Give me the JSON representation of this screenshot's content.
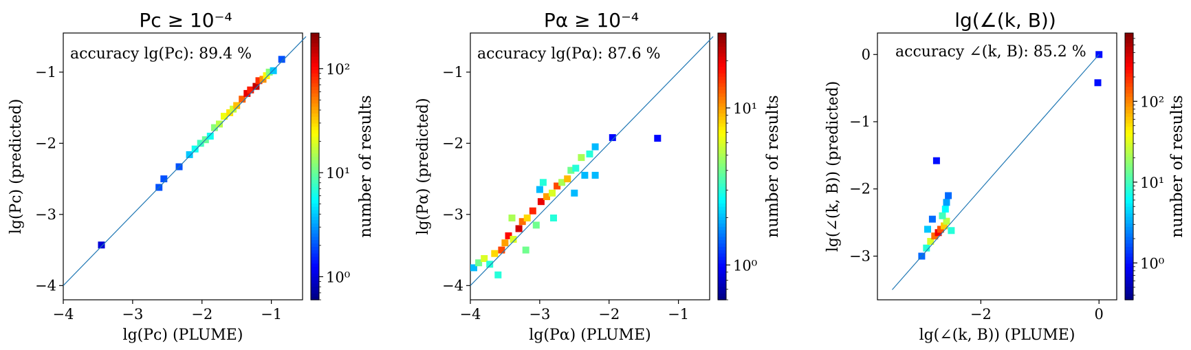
{
  "figure": {
    "colorbar_label": "number of results"
  },
  "colormap": [
    "#00007f",
    "#0000ff",
    "#007fff",
    "#00ffff",
    "#7fff7f",
    "#ffff00",
    "#ff7f00",
    "#ff0000",
    "#7f0000"
  ],
  "chart_data": [
    {
      "type": "heatmap",
      "title": "Pᴄ ≥ 10⁻⁴",
      "xlabel": "lg(Pᴄ) (PLUME)",
      "ylabel": "lg(Pᴄ) (predicted)",
      "accuracy_text": "accuracy lg(Pᴄ): 89.4 %",
      "xlim": [
        -4.0,
        -0.55
      ],
      "ylim": [
        -4.2,
        -0.45
      ],
      "xticks": [
        -4,
        -3,
        -2,
        -1
      ],
      "xtick_labels": [
        "−4",
        "−3",
        "−2",
        "−1"
      ],
      "yticks": [
        -4,
        -3,
        -2,
        -1
      ],
      "ytick_labels": [
        "−4",
        "−3",
        "−2",
        "−1"
      ],
      "diagonal": [
        -4.0,
        -0.5
      ],
      "colorbar": {
        "scale": "log",
        "range": [
          0.6,
          220
        ],
        "ticks": [
          1,
          10,
          100
        ],
        "tick_labels": [
          "10⁰",
          "10¹",
          "10²"
        ]
      },
      "points": [
        [
          -3.45,
          -3.43,
          1
        ],
        [
          -2.62,
          -2.62,
          2
        ],
        [
          -2.55,
          -2.5,
          2
        ],
        [
          -2.33,
          -2.33,
          2
        ],
        [
          -2.18,
          -2.16,
          4
        ],
        [
          -2.1,
          -2.08,
          6
        ],
        [
          -2.02,
          -2.0,
          8
        ],
        [
          -1.95,
          -1.95,
          10
        ],
        [
          -1.88,
          -1.9,
          6
        ],
        [
          -1.82,
          -1.78,
          12
        ],
        [
          -1.75,
          -1.73,
          16
        ],
        [
          -1.68,
          -1.62,
          22
        ],
        [
          -1.6,
          -1.57,
          28
        ],
        [
          -1.55,
          -1.52,
          18
        ],
        [
          -1.5,
          -1.47,
          35
        ],
        [
          -1.42,
          -1.38,
          60
        ],
        [
          -1.35,
          -1.3,
          120
        ],
        [
          -1.3,
          -1.25,
          90
        ],
        [
          -1.22,
          -1.2,
          150
        ],
        [
          -1.18,
          -1.12,
          80
        ],
        [
          -1.12,
          -1.1,
          45
        ],
        [
          -1.07,
          -1.05,
          25
        ],
        [
          -1.03,
          -1.0,
          12
        ],
        [
          -0.97,
          -0.98,
          4
        ],
        [
          -0.85,
          -0.82,
          2
        ]
      ]
    },
    {
      "type": "heatmap",
      "title": "Pα ≥ 10⁻⁴",
      "xlabel": "lg(Pα) (PLUME)",
      "ylabel": "lg(Pα) (predicted)",
      "accuracy_text": "accuracy lg(Pα): 87.6 %",
      "xlim": [
        -4.0,
        -0.55
      ],
      "ylim": [
        -4.2,
        -0.45
      ],
      "xticks": [
        -4,
        -3,
        -2,
        -1
      ],
      "xtick_labels": [
        "−4",
        "−3",
        "−2",
        "−1"
      ],
      "yticks": [
        -4,
        -3,
        -2,
        -1
      ],
      "ytick_labels": [
        "−4",
        "−3",
        "−2",
        "−1"
      ],
      "diagonal": [
        -4.0,
        -0.5
      ],
      "colorbar": {
        "scale": "log",
        "range": [
          0.6,
          30
        ],
        "ticks": [
          1,
          10
        ],
        "tick_labels": [
          "10⁰",
          "10¹"
        ]
      },
      "points": [
        [
          -3.95,
          -3.75,
          2
        ],
        [
          -3.88,
          -3.68,
          4
        ],
        [
          -3.8,
          -3.62,
          6
        ],
        [
          -3.72,
          -3.7,
          3
        ],
        [
          -3.65,
          -3.55,
          8
        ],
        [
          -3.55,
          -3.5,
          14
        ],
        [
          -3.5,
          -3.4,
          10
        ],
        [
          -3.45,
          -3.3,
          18
        ],
        [
          -3.38,
          -3.35,
          6
        ],
        [
          -3.3,
          -3.2,
          22
        ],
        [
          -3.25,
          -3.1,
          12
        ],
        [
          -3.18,
          -3.05,
          8
        ],
        [
          -3.1,
          -2.95,
          16
        ],
        [
          -3.05,
          -3.15,
          4
        ],
        [
          -2.98,
          -2.82,
          20
        ],
        [
          -2.9,
          -2.75,
          10
        ],
        [
          -2.82,
          -2.7,
          6
        ],
        [
          -2.75,
          -2.6,
          14
        ],
        [
          -2.68,
          -2.55,
          5
        ],
        [
          -2.6,
          -2.5,
          9
        ],
        [
          -2.55,
          -2.38,
          4
        ],
        [
          -2.48,
          -2.35,
          3
        ],
        [
          -2.4,
          -2.2,
          5
        ],
        [
          -2.35,
          -2.45,
          2
        ],
        [
          -2.28,
          -2.15,
          3
        ],
        [
          -2.2,
          -2.05,
          2
        ],
        [
          -1.95,
          -1.92,
          1
        ],
        [
          -1.3,
          -1.93,
          1
        ],
        [
          -3.6,
          -3.85,
          3
        ],
        [
          -3.2,
          -3.5,
          4
        ],
        [
          -2.8,
          -3.05,
          3
        ],
        [
          -3.4,
          -3.05,
          5
        ],
        [
          -2.95,
          -2.55,
          3
        ],
        [
          -2.5,
          -2.7,
          2
        ],
        [
          -3.0,
          -2.65,
          2
        ],
        [
          -2.2,
          -2.45,
          2
        ]
      ]
    },
    {
      "type": "heatmap",
      "title": "lg(∠(k, B))",
      "xlabel": "lg(∠(k, B)) (PLUME)",
      "ylabel": "lg(∠(k, B)) (predicted)",
      "accuracy_text": "accuracy ∠(k, B): 85.2 %",
      "xlim": [
        -3.75,
        0.3
      ],
      "ylim": [
        -3.65,
        0.32
      ],
      "xticks": [
        -2,
        0
      ],
      "xtick_labels": [
        "−2",
        "0"
      ],
      "yticks": [
        -3,
        -2,
        -1,
        0
      ],
      "ytick_labels": [
        "−3",
        "−2",
        "−1",
        "0"
      ],
      "diagonal": [
        -3.5,
        0.0
      ],
      "colorbar": {
        "scale": "log",
        "range": [
          0.35,
          700
        ],
        "ticks": [
          1,
          10,
          100
        ],
        "tick_labels": [
          "10⁰",
          "10¹",
          "10²"
        ]
      },
      "points": [
        [
          -3.0,
          -3.0,
          2
        ],
        [
          -2.92,
          -2.88,
          8
        ],
        [
          -2.85,
          -2.78,
          30
        ],
        [
          -2.78,
          -2.7,
          120
        ],
        [
          -2.72,
          -2.65,
          300
        ],
        [
          -2.68,
          -2.6,
          150
        ],
        [
          -2.62,
          -2.55,
          60
        ],
        [
          -2.58,
          -2.48,
          25
        ],
        [
          -2.65,
          -2.4,
          10
        ],
        [
          -2.6,
          -2.3,
          6
        ],
        [
          -2.58,
          -2.2,
          3
        ],
        [
          -2.55,
          -2.1,
          2
        ],
        [
          -2.82,
          -2.45,
          2
        ],
        [
          -2.5,
          -2.62,
          8
        ],
        [
          -2.9,
          -2.6,
          4
        ],
        [
          -2.75,
          -1.58,
          1
        ],
        [
          0.0,
          0.0,
          1
        ],
        [
          -0.02,
          -0.42,
          1
        ]
      ]
    }
  ]
}
